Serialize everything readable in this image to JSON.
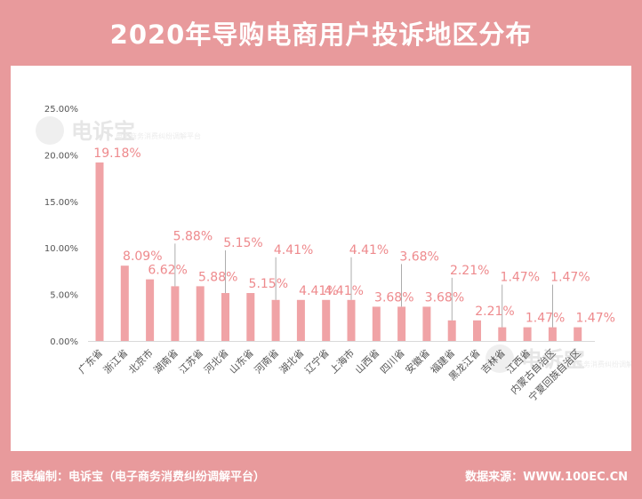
{
  "header": {
    "title": "2020年导购电商用户投诉地区分布"
  },
  "watermark": {
    "name": "电诉宝",
    "sub": "电子商务消费纠纷调解平台"
  },
  "footer": {
    "left": "图表编制：电诉宝（电子商务消费纠纷调解平台）",
    "right": "数据来源：WWW.100EC.CN"
  },
  "colors": {
    "bar": "#f0a3a6",
    "label": "#ee8a8d",
    "frame": "#e89a9c",
    "axis_text": "#555555"
  },
  "chart_data": {
    "type": "bar",
    "title": "2020年导购电商用户投诉地区分布",
    "xlabel": "",
    "ylabel": "",
    "ylim": [
      0,
      25
    ],
    "yticks": [
      0,
      5,
      10,
      15,
      20,
      25
    ],
    "ytick_labels": [
      "0.00%",
      "5.00%",
      "10.00%",
      "15.00%",
      "20.00%",
      "25.00%"
    ],
    "grid": false,
    "legend": "none",
    "categories": [
      "广东省",
      "浙江省",
      "北京市",
      "湖南省",
      "江苏省",
      "河北省",
      "山东省",
      "河南省",
      "湖北省",
      "辽宁省",
      "上海市",
      "山西省",
      "四川省",
      "安徽省",
      "福建省",
      "黑龙江省",
      "吉林省",
      "江西省",
      "内蒙古自治区",
      "宁夏回族自治区"
    ],
    "values": [
      19.18,
      8.09,
      6.62,
      5.88,
      5.88,
      5.15,
      5.15,
      4.41,
      4.41,
      4.41,
      4.41,
      3.68,
      3.68,
      3.68,
      2.21,
      2.21,
      1.47,
      1.47,
      1.47,
      1.47
    ],
    "data_labels": [
      "19.18%",
      "8.09%",
      "6.62%",
      "5.88%",
      "5.88%",
      "5.15%",
      "5.15%",
      "4.41%",
      "4.41%",
      "4.41%",
      "4.41%",
      "3.68%",
      "3.68%",
      "3.68%",
      "2.21%",
      "2.21%",
      "1.47%",
      "1.47%",
      "1.47%",
      "1.47%"
    ]
  }
}
